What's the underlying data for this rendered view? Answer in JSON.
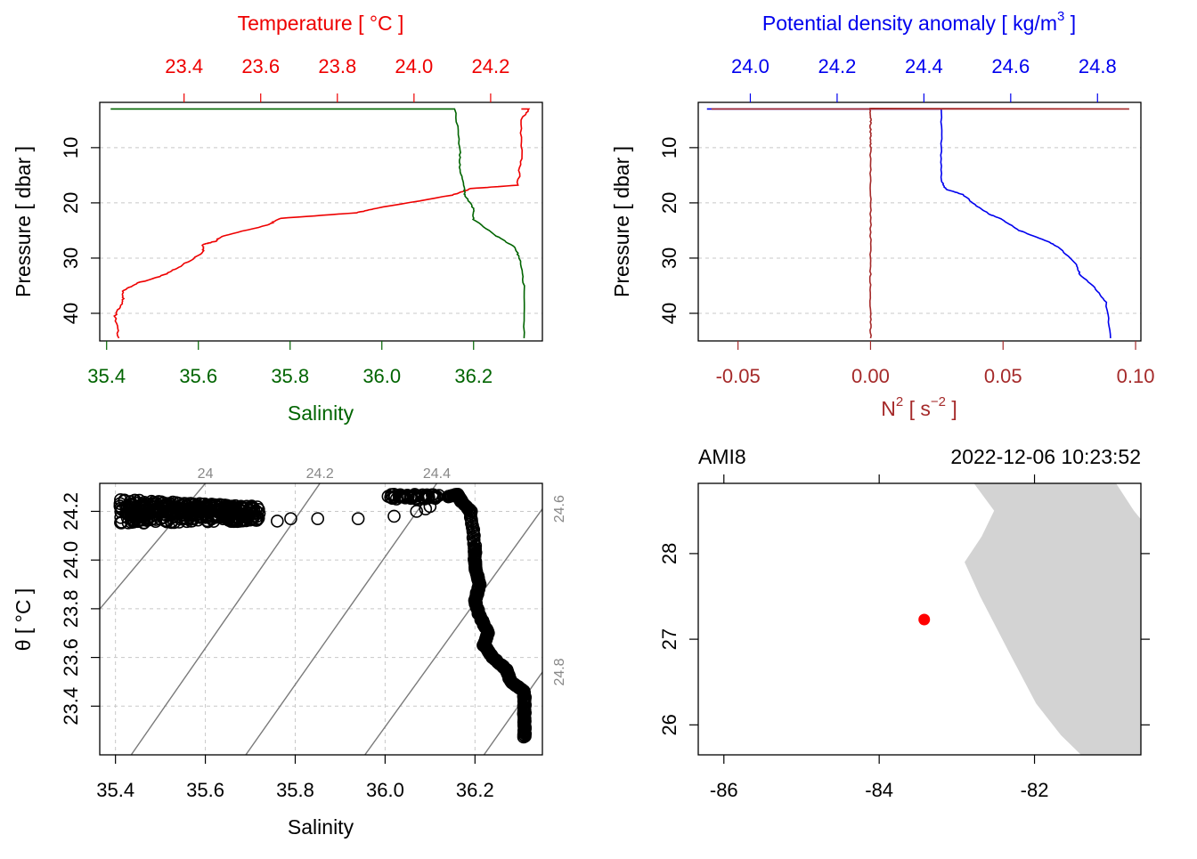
{
  "colors": {
    "temperature": "#ee0000",
    "salinity": "#006400",
    "density": "#0000ee",
    "n2": "#a52a2a",
    "isopycnal": "#7a7a7a",
    "land": "#d3d3d3",
    "station": "#ff0000"
  },
  "chart_data": [
    {
      "type": "line",
      "panel": "salinity-temperature-profile",
      "axes": {
        "bottom": {
          "label": "Salinity",
          "range": [
            35.385,
            36.35
          ],
          "ticks": [
            35.4,
            35.6,
            35.8,
            36.0,
            36.2
          ],
          "tick_labels": [
            "35.4",
            "35.6",
            "35.8",
            "36.0",
            "36.2"
          ]
        },
        "top": {
          "label": "Temperature [ °C ]",
          "range": [
            23.18,
            24.335
          ],
          "ticks": [
            23.4,
            23.6,
            23.8,
            24.0,
            24.2
          ],
          "tick_labels": [
            "23.4",
            "23.6",
            "23.8",
            "24.0",
            "24.2"
          ]
        },
        "left": {
          "label": "Pressure [ dbar ]",
          "range": [
            45.0,
            1.8
          ],
          "reversed": true,
          "ticks": [
            10,
            20,
            30,
            40
          ],
          "tick_labels": [
            "10",
            "20",
            "30",
            "40"
          ]
        }
      },
      "grid": true,
      "series": [
        {
          "name": "Temperature",
          "axis": "top",
          "x": [
            24.28,
            24.3,
            24.28,
            24.28,
            24.27,
            24.15,
            24.1,
            23.9,
            23.85,
            23.65,
            23.62,
            23.5,
            23.48,
            23.45,
            23.45,
            23.39,
            23.35,
            23.28,
            23.24,
            23.24,
            23.22,
            23.23
          ],
          "y": [
            3.0,
            3.0,
            5.0,
            12.0,
            16.8,
            17.4,
            18.6,
            21.0,
            21.8,
            22.8,
            24.0,
            26.0,
            27.0,
            27.5,
            29.0,
            31.5,
            33.0,
            34.5,
            36.0,
            38.0,
            40.5,
            44.5
          ]
        },
        {
          "name": "Salinity",
          "axis": "bottom",
          "x": [
            35.41,
            36.16,
            36.17,
            36.17,
            36.18,
            36.18,
            36.2,
            36.2,
            36.25,
            36.29,
            36.3,
            36.31,
            36.31
          ],
          "y": [
            3.0,
            3.0,
            10.0,
            14.0,
            17.6,
            18.5,
            21.0,
            23.0,
            26.0,
            28.0,
            30.0,
            35.0,
            44.5
          ]
        }
      ]
    },
    {
      "type": "line",
      "panel": "density-n2-profile",
      "axes": {
        "bottom": {
          "label_main": "N",
          "label_sup": "2",
          "label_unit": " [ s",
          "label_unit_sup": "−2",
          "label_end": " ]",
          "range": [
            -0.065,
            0.102
          ],
          "ticks": [
            -0.05,
            0.0,
            0.05,
            0.1
          ],
          "tick_labels": [
            "-0.05",
            "0.00",
            "0.05",
            "0.10"
          ]
        },
        "top": {
          "label_main": "Potential density anomaly [ kg/m",
          "label_sup": "3",
          "label_end": " ]",
          "range": [
            23.88,
            24.9
          ],
          "ticks": [
            24.0,
            24.2,
            24.4,
            24.6,
            24.8
          ],
          "tick_labels": [
            "24.0",
            "24.2",
            "24.4",
            "24.6",
            "24.8"
          ]
        },
        "left": {
          "label": "Pressure [ dbar ]",
          "range": [
            45.0,
            1.8
          ],
          "reversed": true,
          "ticks": [
            10,
            20,
            30,
            40
          ],
          "tick_labels": [
            "10",
            "20",
            "30",
            "40"
          ]
        }
      },
      "grid": true,
      "series": [
        {
          "name": "Potential density anomaly",
          "axis": "top",
          "x": [
            23.9,
            24.44,
            24.44,
            24.44,
            24.45,
            24.49,
            24.52,
            24.55,
            24.58,
            24.62,
            24.68,
            24.71,
            24.75,
            24.76,
            24.79,
            24.82,
            24.83
          ],
          "y": [
            3.0,
            3.0,
            10.0,
            16.0,
            17.5,
            18.5,
            20.5,
            22.0,
            23.0,
            25.0,
            26.8,
            28.0,
            31.0,
            33.0,
            35.0,
            38.0,
            44.5
          ]
        },
        {
          "name": "N²",
          "axis": "bottom",
          "x": [
            -0.06,
            0.0,
            0.0976,
            0.0,
            0.0,
            0.0,
            0.0
          ],
          "y": [
            3.0,
            3.0,
            3.0,
            2.9,
            10.0,
            30.0,
            44.5
          ]
        }
      ]
    },
    {
      "type": "scatter",
      "panel": "ts-diagram",
      "axes": {
        "bottom": {
          "label": "Salinity",
          "range": [
            35.365,
            36.35
          ],
          "ticks": [
            35.4,
            35.6,
            35.8,
            36.0,
            36.2
          ],
          "tick_labels": [
            "35.4",
            "35.6",
            "35.8",
            "36.0",
            "36.2"
          ]
        },
        "left": {
          "label": "θ [ °C ]",
          "range": [
            23.2,
            24.315
          ],
          "ticks": [
            23.4,
            23.6,
            23.8,
            24.0,
            24.2
          ],
          "tick_labels": [
            "23.4",
            "23.6",
            "23.8",
            "24.0",
            "24.2"
          ]
        }
      },
      "grid": true,
      "isopycnals": [
        {
          "sigma": 24.0,
          "label": "24",
          "from": [
            35.345,
            23.755
          ],
          "to": [
            35.6,
            24.315
          ]
        },
        {
          "sigma": 24.2,
          "label": "24.2",
          "from": [
            35.435,
            23.2
          ],
          "to": [
            35.855,
            24.315
          ]
        },
        {
          "sigma": 24.4,
          "label": "24.4",
          "from": [
            35.69,
            23.2
          ],
          "to": [
            36.115,
            24.315
          ]
        },
        {
          "sigma": 24.6,
          "label": "24.6",
          "from": [
            35.955,
            23.2
          ],
          "to": [
            36.35,
            24.21
          ]
        },
        {
          "sigma": 24.8,
          "label": "24.8",
          "from": [
            36.22,
            23.2
          ],
          "to": [
            36.35,
            23.54
          ]
        }
      ],
      "surface_band": {
        "s_range": [
          35.41,
          35.72
        ],
        "t_range": [
          24.15,
          24.25
        ]
      },
      "gap_points": {
        "s": [
          35.76,
          35.79,
          35.85,
          35.94,
          36.02,
          36.07,
          36.09,
          36.1
        ],
        "t": [
          24.16,
          24.17,
          24.17,
          24.17,
          24.18,
          24.2,
          24.21,
          24.22
        ]
      },
      "upper_band": {
        "s": [
          36.0,
          36.12
        ],
        "t": [
          24.25,
          24.27
        ]
      },
      "deep_path": {
        "s": [
          36.14,
          36.16,
          36.17,
          36.19,
          36.2,
          36.2,
          36.21,
          36.2,
          36.21,
          36.23,
          36.22,
          36.24,
          36.27,
          36.28,
          36.31,
          36.31,
          36.31,
          36.31
        ],
        "t": [
          24.26,
          24.27,
          24.24,
          24.2,
          24.05,
          23.98,
          23.9,
          23.83,
          23.77,
          23.7,
          23.65,
          23.6,
          23.55,
          23.5,
          23.46,
          23.4,
          23.33,
          23.27
        ]
      }
    },
    {
      "type": "map",
      "panel": "station-map",
      "title_left": "AMI8",
      "title_right": "2022-12-06 10:23:52",
      "axes": {
        "bottom": {
          "range": [
            -86.33,
            -80.63
          ],
          "ticks": [
            -86,
            -84,
            -82
          ],
          "tick_labels": [
            "-86",
            "-84",
            "-82"
          ]
        },
        "left": {
          "range": [
            25.65,
            28.82
          ],
          "ticks": [
            26,
            27,
            28
          ],
          "tick_labels": [
            "26",
            "27",
            "28"
          ]
        },
        "top": {
          "ticks": [
            -86,
            -84,
            -82
          ]
        },
        "right": {
          "ticks": [
            26,
            27,
            28
          ]
        }
      },
      "grid": false,
      "station": {
        "lon": -83.42,
        "lat": 27.23
      },
      "land": {
        "lon": [
          -82.78,
          -82.52,
          -82.68,
          -82.9,
          -82.7,
          -82.3,
          -81.98,
          -81.66,
          -81.4,
          -80.63,
          -80.63,
          -80.72,
          -80.95,
          -82.78
        ],
        "lat": [
          28.82,
          28.5,
          28.2,
          27.9,
          27.5,
          26.8,
          26.25,
          25.88,
          25.65,
          25.65,
          28.4,
          28.5,
          28.82,
          28.82
        ]
      }
    }
  ]
}
